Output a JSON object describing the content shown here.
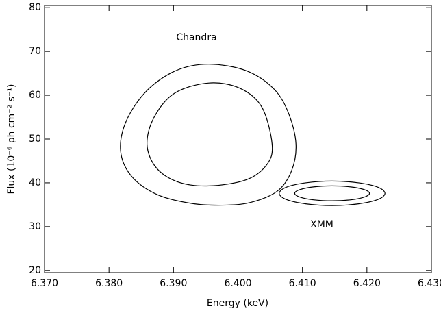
{
  "chart_data": {
    "type": "contour",
    "xlabel": "Energy (keV)",
    "ylabel": "Flux (10⁻⁶  ph cm⁻² s⁻¹)",
    "annotations": [
      "Chandra",
      "XMM"
    ],
    "color": "#000000",
    "xlim": [
      6.37,
      6.43
    ],
    "ylim": [
      19.5,
      80.5
    ],
    "xticks": [
      {
        "value": 6.37,
        "label": "6.370"
      },
      {
        "value": 6.38,
        "label": "6.380"
      },
      {
        "value": 6.39,
        "label": "6.390"
      },
      {
        "value": 6.4,
        "label": "6.400"
      },
      {
        "value": 6.41,
        "label": "6.410"
      },
      {
        "value": 6.42,
        "label": "6.420"
      },
      {
        "value": 6.43,
        "label": "6.430"
      }
    ],
    "yticks": [
      20,
      30,
      40,
      50,
      60,
      70,
      80
    ],
    "contours": [
      {
        "x": [
          6.3955,
          6.4013,
          6.4056,
          6.4079,
          6.409,
          6.4083,
          6.4061,
          6.4019,
          6.3976,
          6.3928,
          6.3875,
          6.3835,
          6.3818,
          6.3827,
          6.3859,
          6.3905
        ],
        "y": [
          67.1,
          65.6,
          61.4,
          55.7,
          48.8,
          42.7,
          38.1,
          35.5,
          34.9,
          35.3,
          37.3,
          41.5,
          47.3,
          54.2,
          61.1,
          65.7
        ]
      },
      {
        "x": [
          6.3955,
          6.4003,
          6.4037,
          6.4053,
          6.4045,
          6.4013,
          6.3955,
          6.3907,
          6.3873,
          6.3859,
          6.387,
          6.3902
        ],
        "y": [
          62.8,
          61.6,
          57.3,
          48.8,
          44.2,
          40.7,
          39.3,
          40.2,
          43.5,
          48.8,
          55.0,
          60.5
        ]
      },
      {
        "x": [
          6.4228,
          6.4217,
          6.4187,
          6.4146,
          6.4105,
          6.4075,
          6.4064,
          6.4075,
          6.4105,
          6.4146,
          6.4187,
          6.4217
        ],
        "y": [
          37.6,
          39.0,
          40.0,
          40.4,
          40.0,
          39.0,
          37.6,
          36.2,
          35.2,
          34.8,
          35.2,
          36.2
        ]
      },
      {
        "x": [
          6.4204,
          6.4196,
          6.4175,
          6.4146,
          6.4117,
          6.4096,
          6.4088,
          6.4096,
          6.4117,
          6.4146,
          6.4175,
          6.4196
        ],
        "y": [
          37.6,
          38.45,
          39.07,
          39.3,
          39.07,
          38.45,
          37.6,
          36.75,
          36.13,
          35.9,
          36.13,
          36.75
        ]
      }
    ]
  }
}
